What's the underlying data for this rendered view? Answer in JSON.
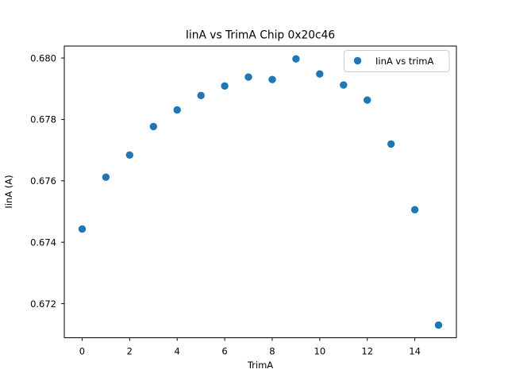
{
  "chart_data": {
    "type": "scatter",
    "title": "IinA vs TrimA Chip 0x20c46",
    "xlabel": "TrimA",
    "ylabel": "IinA (A)",
    "legend": {
      "label": "IinA vs trimA",
      "position": "upper right"
    },
    "x": [
      0,
      1,
      2,
      3,
      4,
      5,
      6,
      7,
      8,
      9,
      10,
      11,
      12,
      13,
      14,
      15
    ],
    "y": [
      0.67443,
      0.67612,
      0.67684,
      0.67777,
      0.67831,
      0.67878,
      0.67909,
      0.67938,
      0.6793,
      0.67997,
      0.67948,
      0.67912,
      0.67863,
      0.6772,
      0.67506,
      0.6713
    ],
    "xlim": [
      -0.75,
      15.75
    ],
    "ylim": [
      0.67089,
      0.68039
    ],
    "xticks": [
      0,
      2,
      4,
      6,
      8,
      10,
      12,
      14
    ],
    "xtick_labels": [
      "0",
      "2",
      "4",
      "6",
      "8",
      "10",
      "12",
      "14"
    ],
    "yticks": [
      0.672,
      0.674,
      0.676,
      0.678,
      0.68
    ],
    "ytick_labels": [
      "0.672",
      "0.674",
      "0.676",
      "0.678",
      "0.680"
    ],
    "marker_color": "#1f77b4",
    "background_color": "#ffffff",
    "grid": false
  }
}
